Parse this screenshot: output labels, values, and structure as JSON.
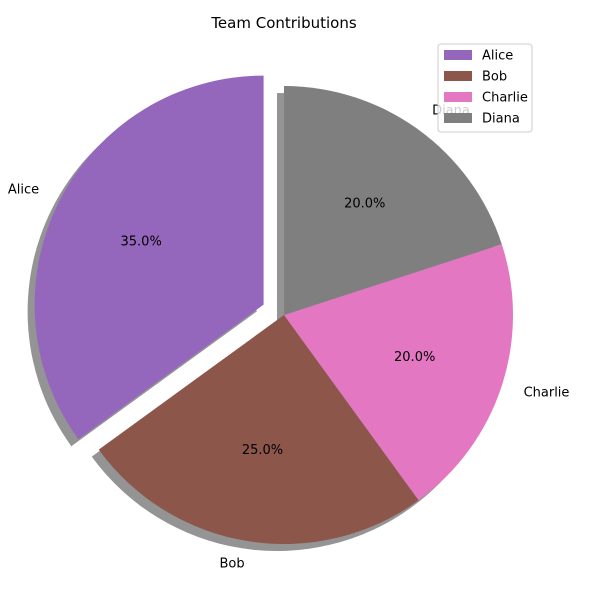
{
  "chart_data": {
    "type": "pie",
    "title": "Team Contributions",
    "slices": [
      {
        "label": "Alice",
        "value": 35.0,
        "pct_label": "35.0%",
        "color": "#9467bd",
        "exploded": true
      },
      {
        "label": "Bob",
        "value": 25.0,
        "pct_label": "25.0%",
        "color": "#8c564b",
        "exploded": false
      },
      {
        "label": "Charlie",
        "value": 20.0,
        "pct_label": "20.0%",
        "color": "#e377c2",
        "exploded": false
      },
      {
        "label": "Diana",
        "value": 20.0,
        "pct_label": "20.0%",
        "color": "#7f7f7f",
        "exploded": false
      }
    ],
    "start_angle_deg": 90,
    "direction": "counterclockwise",
    "shadow": true,
    "legend": {
      "placement": "top-right",
      "entries": [
        "Alice",
        "Bob",
        "Charlie",
        "Diana"
      ]
    }
  }
}
